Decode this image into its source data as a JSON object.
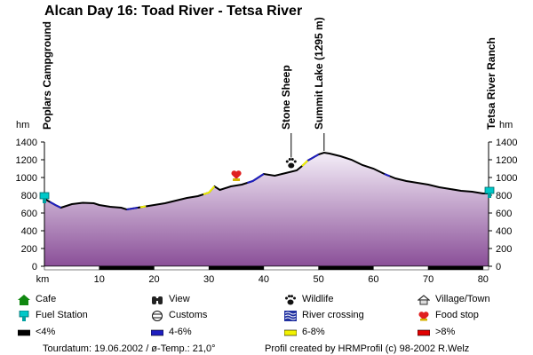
{
  "chart_data": {
    "type": "area",
    "title": "Alcan Day 16: Toad River - Tetsa River",
    "ylabel": "hm",
    "xlabel": "km",
    "ylim": [
      0,
      1400
    ],
    "xlim": [
      0,
      81
    ],
    "yticks": [
      0,
      200,
      400,
      600,
      800,
      1000,
      1200,
      1400
    ],
    "yticks_right": [
      0,
      200,
      400,
      600,
      800,
      1000,
      1200,
      1400
    ],
    "xticks": [
      10,
      20,
      30,
      40,
      50,
      60,
      70,
      80
    ],
    "grid": false,
    "series": [
      {
        "x": [
          0,
          2,
          3,
          5,
          7,
          9,
          10,
          12,
          14,
          15,
          17,
          19,
          20,
          22,
          24,
          26,
          28,
          30,
          31,
          32,
          34,
          36,
          38,
          40,
          42,
          44,
          46,
          47,
          48,
          50,
          51,
          52,
          54,
          56,
          58,
          60,
          62,
          64,
          66,
          68,
          70,
          72,
          74,
          76,
          78,
          80,
          81
        ],
        "y": [
          760,
          690,
          660,
          700,
          715,
          710,
          690,
          670,
          660,
          640,
          660,
          680,
          690,
          710,
          740,
          770,
          790,
          830,
          900,
          860,
          900,
          920,
          960,
          1040,
          1020,
          1050,
          1080,
          1130,
          1190,
          1260,
          1280,
          1270,
          1240,
          1200,
          1140,
          1100,
          1040,
          990,
          960,
          940,
          920,
          890,
          870,
          850,
          840,
          820,
          820
        ]
      }
    ],
    "gradient_segments": [
      {
        "from": 17.5,
        "to": 18.5,
        "class": "6-8%"
      },
      {
        "from": 29,
        "to": 31,
        "class": "6-8%"
      },
      {
        "from": 47,
        "to": 48,
        "class": "6-8%"
      },
      {
        "from": 1,
        "to": 3,
        "class": "4-6%"
      },
      {
        "from": 15,
        "to": 17,
        "class": "4-6%"
      },
      {
        "from": 37,
        "to": 40,
        "class": "4-6%"
      },
      {
        "from": 48,
        "to": 50,
        "class": "4-6%"
      },
      {
        "from": 62,
        "to": 63,
        "class": "4-6%"
      }
    ],
    "waypoints": [
      {
        "km": 0,
        "label": "Poplars Campground",
        "icon": "fuel"
      },
      {
        "km": 45,
        "label": "Stone Sheep",
        "icon": "wildlife"
      },
      {
        "km": 51,
        "label": "Summit Lake (1295 m)",
        "icon": "none"
      },
      {
        "km": 81,
        "label": "Tetsa River Ranch",
        "icon": "fuel"
      }
    ],
    "food_stop_km": 35
  },
  "colors": {
    "grade_lt4": "#000000",
    "grade_4_6": "#1f1fbf",
    "grade_6_8": "#f2f200",
    "grade_gt8": "#e00000",
    "fill_top": "#f4eef8",
    "fill_bottom": "#8a4f98",
    "axis": "#000000",
    "fuel": "#00c8c8",
    "cafe": "#108810",
    "food_stop": "#e02020"
  },
  "legend": {
    "items": [
      {
        "label": "Cafe",
        "icon": "cafe-icon"
      },
      {
        "label": "View",
        "icon": "binoculars-icon"
      },
      {
        "label": "Wildlife",
        "icon": "paw-icon"
      },
      {
        "label": "Village/Town",
        "icon": "house-icon"
      },
      {
        "label": "Fuel Station",
        "icon": "fuel-icon"
      },
      {
        "label": "Customs",
        "icon": "customs-icon"
      },
      {
        "label": "River crossing",
        "icon": "river-icon"
      },
      {
        "label": "Food stop",
        "icon": "food-stop-icon"
      },
      {
        "label": "<4%",
        "icon": "grade-lt4-swatch"
      },
      {
        "label": "4-6%",
        "icon": "grade-4-6-swatch"
      },
      {
        "label": "6-8%",
        "icon": "grade-6-8-swatch"
      },
      {
        "label": ">8%",
        "icon": "grade-gt8-swatch"
      }
    ]
  },
  "footer": {
    "date": "Tourdatum: 19.06.2002 / ø-Temp.: 21,0°",
    "credit": "Profil created by HRMProfil (c) 98-2002 R.Welz"
  }
}
